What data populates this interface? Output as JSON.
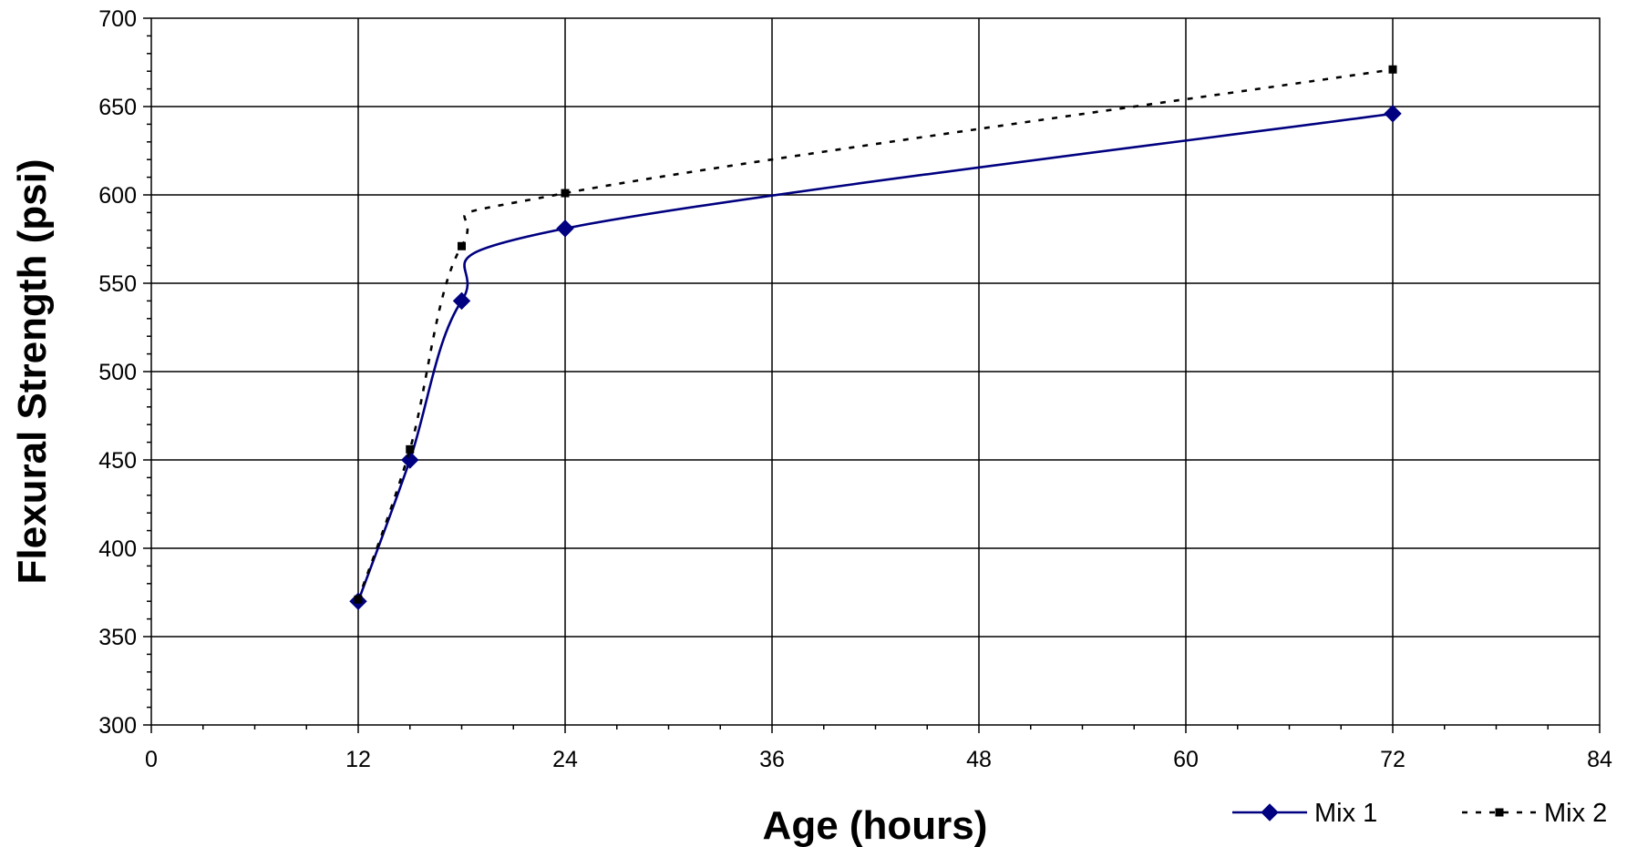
{
  "chart_data": {
    "type": "line",
    "title": "",
    "xlabel": "Age (hours)",
    "ylabel": "Flexural Strength (psi)",
    "xlim": [
      0,
      84
    ],
    "ylim": [
      300,
      700
    ],
    "x_ticks": [
      0,
      12,
      24,
      36,
      48,
      60,
      72,
      84
    ],
    "y_ticks": [
      300,
      350,
      400,
      450,
      500,
      550,
      600,
      650,
      700
    ],
    "x_tick_labels": [
      "0",
      "12",
      "24",
      "36",
      "48",
      "60",
      "72",
      "84"
    ],
    "y_tick_labels": [
      "300",
      "350",
      "400",
      "450",
      "500",
      "550",
      "600",
      "650",
      "700"
    ],
    "x_minor_step": 3,
    "y_minor_step": 10,
    "grid": true,
    "legend_position": "bottom-right",
    "series": [
      {
        "name": "Mix 1",
        "color": "#000080",
        "line_style": "solid",
        "marker": "diamond",
        "x": [
          12,
          15,
          18,
          24,
          72
        ],
        "y": [
          370,
          450,
          540,
          581,
          646
        ]
      },
      {
        "name": "Mix 2",
        "color": "#000000",
        "line_style": "dashed",
        "marker": "square",
        "x": [
          12,
          15,
          18,
          24,
          72
        ],
        "y": [
          371,
          456,
          571,
          601,
          671
        ]
      }
    ]
  }
}
